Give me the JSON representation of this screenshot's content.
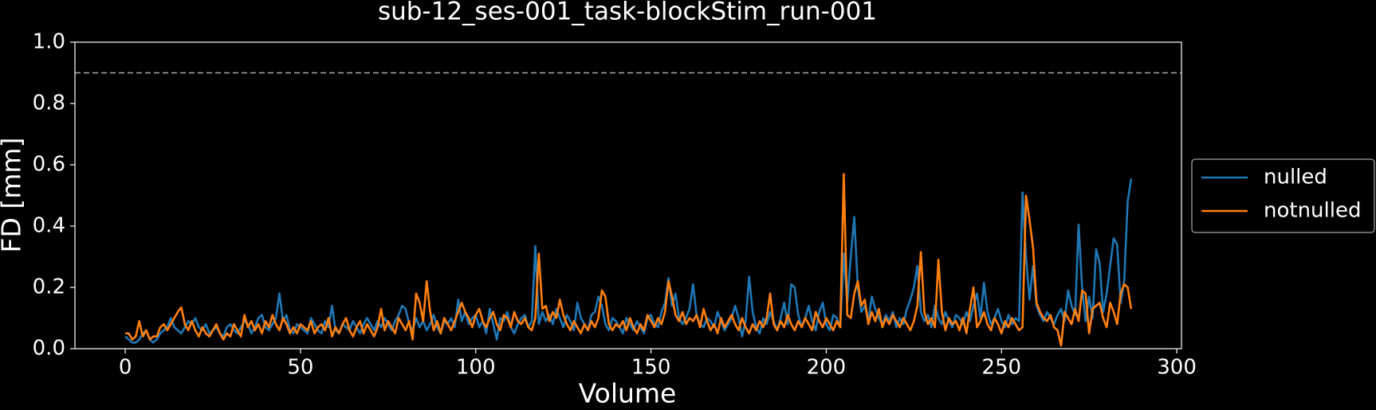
{
  "chart_data": {
    "type": "line",
    "title": "sub-12_ses-001_task-blockStim_run-001",
    "xlabel": "Volume",
    "ylabel": "FD [mm]",
    "x": [
      0,
      1,
      2,
      3,
      4,
      5,
      6,
      7,
      8,
      9,
      10,
      11,
      12,
      13,
      14,
      15,
      16,
      17,
      18,
      19,
      20,
      21,
      22,
      23,
      24,
      25,
      26,
      27,
      28,
      29,
      30,
      31,
      32,
      33,
      34,
      35,
      36,
      37,
      38,
      39,
      40,
      41,
      42,
      43,
      44,
      45,
      46,
      47,
      48,
      49,
      50,
      51,
      52,
      53,
      54,
      55,
      56,
      57,
      58,
      59,
      60,
      61,
      62,
      63,
      64,
      65,
      66,
      67,
      68,
      69,
      70,
      71,
      72,
      73,
      74,
      75,
      76,
      77,
      78,
      79,
      80,
      81,
      82,
      83,
      84,
      85,
      86,
      87,
      88,
      89,
      90,
      91,
      92,
      93,
      94,
      95,
      96,
      97,
      98,
      99,
      100,
      101,
      102,
      103,
      104,
      105,
      106,
      107,
      108,
      109,
      110,
      111,
      112,
      113,
      114,
      115,
      116,
      117,
      118,
      119,
      120,
      121,
      122,
      123,
      124,
      125,
      126,
      127,
      128,
      129,
      130,
      131,
      132,
      133,
      134,
      135,
      136,
      137,
      138,
      139,
      140,
      141,
      142,
      143,
      144,
      145,
      146,
      147,
      148,
      149,
      150,
      151,
      152,
      153,
      154,
      155,
      156,
      157,
      158,
      159,
      160,
      161,
      162,
      163,
      164,
      165,
      166,
      167,
      168,
      169,
      170,
      171,
      172,
      173,
      174,
      175,
      176,
      177,
      178,
      179,
      180,
      181,
      182,
      183,
      184,
      185,
      186,
      187,
      188,
      189,
      190,
      191,
      192,
      193,
      194,
      195,
      196,
      197,
      198,
      199,
      200,
      201,
      202,
      203,
      204,
      205,
      206,
      207,
      208,
      209,
      210,
      211,
      212,
      213,
      214,
      215,
      216,
      217,
      218,
      219,
      220,
      221,
      222,
      223,
      224,
      225,
      226,
      227,
      228,
      229,
      230,
      231,
      232,
      233,
      234,
      235,
      236,
      237,
      238,
      239,
      240,
      241,
      242,
      243,
      244,
      245,
      246,
      247,
      248,
      249,
      250,
      251,
      252,
      253,
      254,
      255,
      256,
      257,
      258,
      259,
      260,
      261,
      262,
      263,
      264,
      265,
      266,
      267,
      268,
      269,
      270,
      271,
      272,
      273,
      274,
      275,
      276,
      277,
      278,
      279,
      280,
      281,
      282,
      283,
      284,
      285,
      286,
      287
    ],
    "series": [
      {
        "name": "nulled",
        "color": "#1f77b4",
        "values": [
          0.04,
          0.03,
          0.02,
          0.02,
          0.03,
          0.05,
          0.06,
          0.03,
          0.02,
          0.03,
          0.05,
          0.06,
          0.07,
          0.1,
          0.07,
          0.06,
          0.05,
          0.07,
          0.09,
          0.08,
          0.1,
          0.07,
          0.06,
          0.08,
          0.05,
          0.06,
          0.07,
          0.05,
          0.04,
          0.07,
          0.08,
          0.06,
          0.05,
          0.07,
          0.09,
          0.08,
          0.05,
          0.07,
          0.1,
          0.11,
          0.07,
          0.06,
          0.08,
          0.1,
          0.18,
          0.09,
          0.11,
          0.06,
          0.05,
          0.08,
          0.07,
          0.06,
          0.05,
          0.1,
          0.08,
          0.06,
          0.05,
          0.09,
          0.07,
          0.14,
          0.06,
          0.05,
          0.08,
          0.07,
          0.06,
          0.09,
          0.07,
          0.05,
          0.08,
          0.1,
          0.08,
          0.06,
          0.09,
          0.07,
          0.1,
          0.08,
          0.06,
          0.09,
          0.11,
          0.14,
          0.13,
          0.08,
          0.06,
          0.1,
          0.07,
          0.09,
          0.06,
          0.08,
          0.11,
          0.07,
          0.05,
          0.09,
          0.08,
          0.1,
          0.07,
          0.16,
          0.09,
          0.12,
          0.08,
          0.1,
          0.11,
          0.07,
          0.09,
          0.05,
          0.13,
          0.08,
          0.03,
          0.1,
          0.09,
          0.12,
          0.07,
          0.05,
          0.08,
          0.1,
          0.11,
          0.07,
          0.09,
          0.335,
          0.08,
          0.12,
          0.09,
          0.11,
          0.08,
          0.13,
          0.1,
          0.07,
          0.11,
          0.09,
          0.06,
          0.15,
          0.1,
          0.08,
          0.06,
          0.11,
          0.12,
          0.17,
          0.14,
          0.08,
          0.06,
          0.1,
          0.09,
          0.07,
          0.05,
          0.1,
          0.08,
          0.06,
          0.09,
          0.07,
          0.05,
          0.1,
          0.11,
          0.08,
          0.07,
          0.12,
          0.15,
          0.23,
          0.14,
          0.18,
          0.1,
          0.08,
          0.1,
          0.13,
          0.21,
          0.11,
          0.08,
          0.07,
          0.1,
          0.09,
          0.07,
          0.12,
          0.09,
          0.06,
          0.08,
          0.1,
          0.14,
          0.1,
          0.04,
          0.09,
          0.235,
          0.12,
          0.07,
          0.05,
          0.1,
          0.08,
          0.12,
          0.09,
          0.06,
          0.1,
          0.15,
          0.08,
          0.21,
          0.2,
          0.11,
          0.07,
          0.1,
          0.14,
          0.09,
          0.06,
          0.12,
          0.15,
          0.08,
          0.06,
          0.11,
          0.1,
          0.07,
          0.31,
          0.15,
          0.3,
          0.43,
          0.2,
          0.12,
          0.14,
          0.09,
          0.17,
          0.13,
          0.1,
          0.08,
          0.11,
          0.09,
          0.12,
          0.07,
          0.1,
          0.08,
          0.13,
          0.16,
          0.2,
          0.27,
          0.12,
          0.09,
          0.11,
          0.07,
          0.14,
          0.1,
          0.08,
          0.12,
          0.09,
          0.07,
          0.11,
          0.1,
          0.08,
          0.12,
          0.09,
          0.14,
          0.18,
          0.1,
          0.215,
          0.12,
          0.08,
          0.1,
          0.13,
          0.09,
          0.07,
          0.11,
          0.08,
          0.1,
          0.09,
          0.51,
          0.3,
          0.16,
          0.27,
          0.14,
          0.11,
          0.09,
          0.12,
          0.1,
          0.08,
          0.11,
          0.13,
          0.09,
          0.19,
          0.14,
          0.11,
          0.405,
          0.2,
          0.09,
          0.17,
          0.1,
          0.325,
          0.28,
          0.12,
          0.18,
          0.27,
          0.36,
          0.34,
          0.15,
          0.22,
          0.48,
          0.555
        ]
      },
      {
        "name": "notnulled",
        "color": "#ff7f0e",
        "values": [
          0.05,
          0.05,
          0.03,
          0.04,
          0.09,
          0.04,
          0.06,
          0.03,
          0.04,
          0.04,
          0.07,
          0.08,
          0.06,
          0.08,
          0.1,
          0.12,
          0.135,
          0.08,
          0.06,
          0.09,
          0.06,
          0.04,
          0.07,
          0.05,
          0.04,
          0.06,
          0.08,
          0.05,
          0.03,
          0.05,
          0.04,
          0.08,
          0.06,
          0.04,
          0.11,
          0.07,
          0.09,
          0.06,
          0.08,
          0.05,
          0.09,
          0.07,
          0.11,
          0.08,
          0.06,
          0.1,
          0.08,
          0.05,
          0.07,
          0.05,
          0.08,
          0.07,
          0.06,
          0.09,
          0.05,
          0.07,
          0.08,
          0.06,
          0.1,
          0.04,
          0.07,
          0.05,
          0.08,
          0.1,
          0.06,
          0.04,
          0.07,
          0.09,
          0.05,
          0.08,
          0.06,
          0.04,
          0.07,
          0.13,
          0.06,
          0.09,
          0.07,
          0.05,
          0.1,
          0.08,
          0.06,
          0.09,
          0.03,
          0.18,
          0.15,
          0.09,
          0.22,
          0.12,
          0.06,
          0.09,
          0.05,
          0.1,
          0.08,
          0.06,
          0.09,
          0.12,
          0.15,
          0.12,
          0.1,
          0.07,
          0.11,
          0.13,
          0.09,
          0.07,
          0.1,
          0.12,
          0.08,
          0.06,
          0.11,
          0.1,
          0.07,
          0.12,
          0.09,
          0.08,
          0.1,
          0.07,
          0.06,
          0.1,
          0.31,
          0.13,
          0.14,
          0.09,
          0.12,
          0.1,
          0.16,
          0.11,
          0.08,
          0.06,
          0.09,
          0.07,
          0.05,
          0.08,
          0.06,
          0.09,
          0.07,
          0.1,
          0.19,
          0.17,
          0.08,
          0.06,
          0.08,
          0.07,
          0.09,
          0.06,
          0.1,
          0.07,
          0.05,
          0.08,
          0.06,
          0.11,
          0.09,
          0.07,
          0.1,
          0.08,
          0.12,
          0.22,
          0.17,
          0.11,
          0.09,
          0.12,
          0.08,
          0.1,
          0.09,
          0.11,
          0.07,
          0.13,
          0.09,
          0.06,
          0.08,
          0.05,
          0.1,
          0.07,
          0.09,
          0.11,
          0.08,
          0.06,
          0.1,
          0.07,
          0.05,
          0.08,
          0.06,
          0.09,
          0.07,
          0.1,
          0.18,
          0.08,
          0.06,
          0.09,
          0.07,
          0.11,
          0.08,
          0.06,
          0.09,
          0.07,
          0.1,
          0.08,
          0.06,
          0.12,
          0.09,
          0.07,
          0.1,
          0.08,
          0.06,
          0.09,
          0.07,
          0.57,
          0.11,
          0.1,
          0.18,
          0.22,
          0.14,
          0.16,
          0.08,
          0.12,
          0.09,
          0.13,
          0.07,
          0.1,
          0.08,
          0.11,
          0.09,
          0.07,
          0.1,
          0.08,
          0.06,
          0.09,
          0.14,
          0.315,
          0.12,
          0.08,
          0.1,
          0.07,
          0.29,
          0.12,
          0.06,
          0.1,
          0.08,
          0.09,
          0.06,
          0.1,
          0.05,
          0.13,
          0.2,
          0.07,
          0.09,
          0.12,
          0.08,
          0.06,
          0.1,
          0.08,
          0.05,
          0.09,
          0.07,
          0.1,
          0.08,
          0.06,
          0.07,
          0.5,
          0.42,
          0.33,
          0.15,
          0.12,
          0.1,
          0.09,
          0.11,
          0.07,
          0.06,
          0.01,
          0.12,
          0.1,
          0.08,
          0.13,
          0.09,
          0.19,
          0.18,
          0.05,
          0.13,
          0.14,
          0.15,
          0.1,
          0.07,
          0.15,
          0.12,
          0.08,
          0.18,
          0.21,
          0.2,
          0.13
        ]
      }
    ],
    "threshold": 0.9,
    "threshold_color": "#aaaaaa",
    "xlim": [
      -14.35,
      301.35
    ],
    "xticks": [
      0,
      50,
      100,
      150,
      200,
      250,
      300
    ],
    "ylim": [
      0,
      1
    ],
    "yticks": [
      {
        "value": 0,
        "label": "0.0"
      },
      0.2,
      0.4,
      0.6,
      0.8,
      {
        "value": 1,
        "label": "1.0"
      }
    ],
    "legend": "right"
  }
}
